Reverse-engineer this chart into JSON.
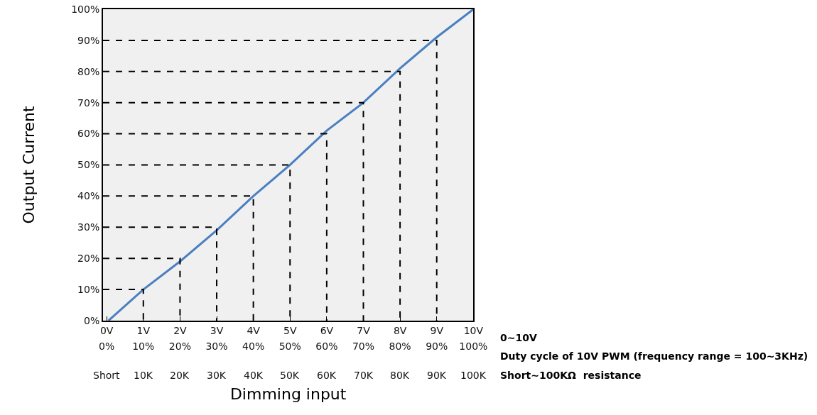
{
  "chart_data": {
    "type": "line",
    "xlabel": "Dimming input",
    "ylabel": "Output Current",
    "xlim": [
      -0.1,
      10
    ],
    "ylim": [
      0,
      100
    ],
    "xticks": [
      {
        "value": 0,
        "label": "0V"
      },
      {
        "value": 1,
        "label": "1V"
      },
      {
        "value": 2,
        "label": "2V"
      },
      {
        "value": 3,
        "label": "3V"
      },
      {
        "value": 4,
        "label": "4V"
      },
      {
        "value": 5,
        "label": "5V"
      },
      {
        "value": 6,
        "label": "6V"
      },
      {
        "value": 7,
        "label": "7V"
      },
      {
        "value": 8,
        "label": "8V"
      },
      {
        "value": 9,
        "label": "9V"
      },
      {
        "value": 10,
        "label": "10V"
      }
    ],
    "x2lim": [
      -1,
      100
    ],
    "x2ticks": [
      {
        "value": 0,
        "label": "0%"
      },
      {
        "value": 10,
        "label": "10%"
      },
      {
        "value": 20,
        "label": "20%"
      },
      {
        "value": 30,
        "label": "30%"
      },
      {
        "value": 40,
        "label": "40%"
      },
      {
        "value": 50,
        "label": "50%"
      },
      {
        "value": 60,
        "label": "60%"
      },
      {
        "value": 70,
        "label": "70%"
      },
      {
        "value": 80,
        "label": "80%"
      },
      {
        "value": 90,
        "label": "90%"
      },
      {
        "value": 100,
        "label": "100%"
      }
    ],
    "yticks": [
      {
        "value": 0,
        "label": "0%"
      },
      {
        "value": 10,
        "label": "10%"
      },
      {
        "value": 20,
        "label": "20%"
      },
      {
        "value": 30,
        "label": "30%"
      },
      {
        "value": 40,
        "label": "40%"
      },
      {
        "value": 50,
        "label": "50%"
      },
      {
        "value": 60,
        "label": "60%"
      },
      {
        "value": 70,
        "label": "70%"
      },
      {
        "value": 80,
        "label": "80%"
      },
      {
        "value": 90,
        "label": "90%"
      },
      {
        "value": 100,
        "label": "100%"
      }
    ],
    "grid": false,
    "marker": "none",
    "annotations": [
      "0~10V",
      "Duty cycle of 10V PWM (frequency range = 100~3KHz)",
      "Short~100KΩ  resistance",
      "Short",
      "10K",
      "20K",
      "30K",
      "40K",
      "50K",
      "60K",
      "70K",
      "80K",
      "90K",
      "100K"
    ],
    "series": [
      {
        "color": "#4a7fc1",
        "x": [
          0.05,
          1,
          2,
          3,
          4,
          5,
          6,
          7,
          8,
          9,
          10
        ],
        "values": [
          0,
          10,
          19,
          29,
          40,
          50,
          61,
          70,
          81,
          91,
          100
        ]
      },
      {
        "color": "#000000",
        "line_style": "dashed",
        "x": [
          -0.1,
          1,
          1
        ],
        "values": [
          10,
          10,
          0
        ]
      },
      {
        "color": "#000000",
        "line_style": "dashed",
        "x": [
          -0.1,
          2,
          2
        ],
        "values": [
          20,
          20,
          0
        ]
      },
      {
        "color": "#000000",
        "line_style": "dashed",
        "x": [
          -0.1,
          3,
          3
        ],
        "values": [
          30,
          30,
          0
        ]
      },
      {
        "color": "#000000",
        "line_style": "dashed",
        "x": [
          -0.1,
          4,
          4
        ],
        "values": [
          40,
          40,
          0
        ]
      },
      {
        "color": "#000000",
        "line_style": "dashed",
        "x": [
          -0.1,
          5,
          5
        ],
        "values": [
          50,
          50,
          0
        ]
      },
      {
        "color": "#000000",
        "line_style": "dashed",
        "x": [
          -0.1,
          6,
          6
        ],
        "values": [
          60,
          60,
          0
        ]
      },
      {
        "color": "#000000",
        "line_style": "dashed",
        "x": [
          -0.1,
          7,
          7
        ],
        "values": [
          70,
          70,
          0
        ]
      },
      {
        "color": "#000000",
        "line_style": "dashed",
        "x": [
          -0.1,
          8,
          8
        ],
        "values": [
          80,
          80,
          0
        ]
      },
      {
        "color": "#000000",
        "line_style": "dashed",
        "x": [
          -0.1,
          9,
          9
        ],
        "values": [
          90,
          90,
          0
        ]
      }
    ]
  }
}
